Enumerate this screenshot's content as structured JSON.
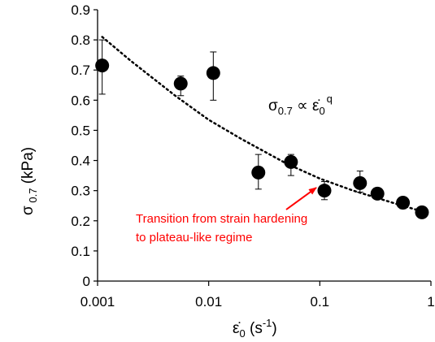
{
  "chart_data": {
    "type": "scatter",
    "x_scale": "log",
    "xlim": [
      0.001,
      1
    ],
    "ylim": [
      0,
      0.9
    ],
    "x_ticks": [
      {
        "value": 0.001,
        "label": "0.001"
      },
      {
        "value": 0.01,
        "label": "0.01"
      },
      {
        "value": 0.1,
        "label": "0.1"
      },
      {
        "value": 1,
        "label": "1"
      }
    ],
    "y_ticks": [
      {
        "value": 0,
        "label": "0"
      },
      {
        "value": 0.1,
        "label": "0.1"
      },
      {
        "value": 0.2,
        "label": "0.2"
      },
      {
        "value": 0.3,
        "label": "0.3"
      },
      {
        "value": 0.4,
        "label": "0.4"
      },
      {
        "value": 0.5,
        "label": "0.5"
      },
      {
        "value": 0.6,
        "label": "0.6"
      },
      {
        "value": 0.7,
        "label": "0.7"
      },
      {
        "value": 0.8,
        "label": "0.8"
      },
      {
        "value": 0.9,
        "label": "0.9"
      }
    ],
    "xlabel": {
      "main": "ε̇",
      "sub": "0",
      "unit_open": " (s",
      "unit_sup": "-1",
      "unit_close": ")"
    },
    "ylabel": {
      "main": "σ",
      "sub": " 0.7",
      "unit": " (kPa)"
    },
    "points": [
      {
        "x": 0.0011,
        "y": 0.715,
        "err_low": 0.62,
        "err_high": 0.8
      },
      {
        "x": 0.0056,
        "y": 0.655,
        "err_low": 0.615,
        "err_high": 0.68
      },
      {
        "x": 0.011,
        "y": 0.69,
        "err_low": 0.6,
        "err_high": 0.76
      },
      {
        "x": 0.028,
        "y": 0.36,
        "err_low": 0.305,
        "err_high": 0.42
      },
      {
        "x": 0.055,
        "y": 0.395,
        "err_low": 0.35,
        "err_high": 0.42
      },
      {
        "x": 0.11,
        "y": 0.3,
        "err_low": 0.27,
        "err_high": 0.33
      },
      {
        "x": 0.23,
        "y": 0.325,
        "err_low": 0.295,
        "err_high": 0.365
      },
      {
        "x": 0.33,
        "y": 0.29,
        "err_low": 0.28,
        "err_high": 0.3
      },
      {
        "x": 0.56,
        "y": 0.26,
        "err_low": 0.24,
        "err_high": 0.275
      },
      {
        "x": 0.83,
        "y": 0.228,
        "err_low": 0.22,
        "err_high": 0.235
      }
    ],
    "fit_line": {
      "style": "dotted",
      "x": [
        0.0011,
        0.002,
        0.005,
        0.01,
        0.02,
        0.05,
        0.1,
        0.2,
        0.5,
        0.85
      ],
      "y": [
        0.81,
        0.73,
        0.615,
        0.535,
        0.47,
        0.39,
        0.34,
        0.3,
        0.255,
        0.23
      ]
    },
    "formula": {
      "sigma": "σ",
      "sigma_sub": "0.7",
      "prop": " ∝ ",
      "eps": "ε̇",
      "eps_sub": "0",
      "eps_sup": "q"
    },
    "annotation": {
      "lines": [
        "Transition from strain hardening",
        "to plateau-like regime"
      ],
      "color": "#ff0000",
      "arrow_target": {
        "x": 0.11,
        "y": 0.3
      }
    },
    "marker_color": "#000000",
    "grid": false
  }
}
